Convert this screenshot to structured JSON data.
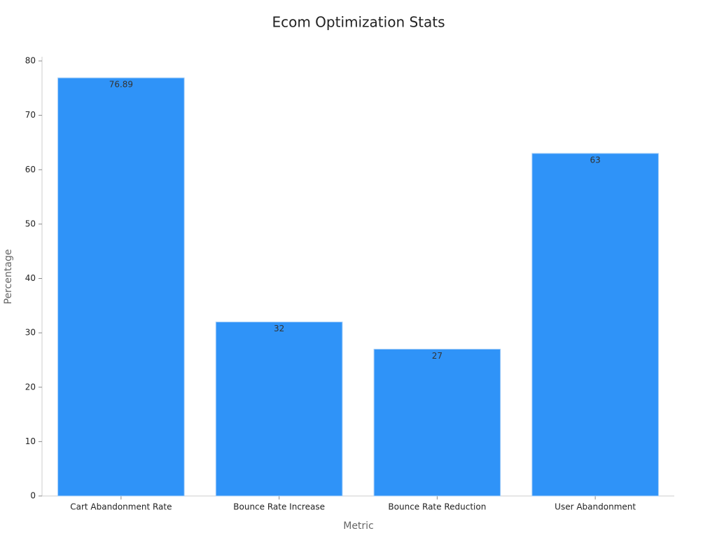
{
  "chart_data": {
    "type": "bar",
    "title": "Ecom Optimization Stats",
    "x_label": "Metric",
    "y_label": "Percentage",
    "categories": [
      "Cart Abandonment Rate",
      "Bounce Rate Increase",
      "Bounce Rate Reduction",
      "User Abandonment"
    ],
    "values": [
      76.89,
      32,
      27,
      63
    ],
    "color": "#2f93f8",
    "ylim": [
      0,
      80
    ],
    "yticks": [
      0,
      10,
      20,
      30,
      40,
      50,
      60,
      70,
      80
    ],
    "grid": false
  }
}
